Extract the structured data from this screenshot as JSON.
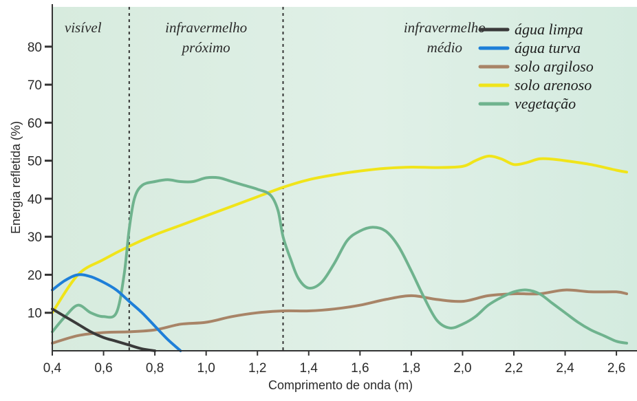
{
  "chart_data": {
    "type": "line",
    "xlabel": "Comprimento de onda (m)",
    "ylabel": "Energia refletida (%)",
    "xlim": [
      0.4,
      2.64
    ],
    "ylim": [
      0,
      88
    ],
    "x_ticks": [
      0.4,
      0.6,
      0.8,
      1.0,
      1.2,
      1.4,
      1.6,
      1.8,
      2.0,
      2.2,
      2.4,
      2.6
    ],
    "x_tick_labels": [
      "0,4",
      "0,6",
      "0,8",
      "1,0",
      "1,2",
      "1,4",
      "1,6",
      "1,8",
      "2,0",
      "2,2",
      "2,4",
      "2,6"
    ],
    "y_ticks": [
      10,
      20,
      30,
      40,
      50,
      60,
      70,
      80
    ],
    "y_tick_labels": [
      "10",
      "20",
      "30",
      "40",
      "50",
      "60",
      "70",
      "80"
    ],
    "grid": false,
    "legend_position": "top-right",
    "region_dividers": [
      0.7,
      1.3
    ],
    "regions": [
      {
        "lines": [
          "visível"
        ],
        "x": 0.52
      },
      {
        "lines": [
          "infravermelho",
          "próximo"
        ],
        "x": 1.0
      },
      {
        "lines": [
          "infravermelho",
          "médio"
        ],
        "x": 1.93
      }
    ],
    "series": [
      {
        "name": "água limpa",
        "color": "#3a3a3a",
        "x": [
          0.4,
          0.45,
          0.5,
          0.55,
          0.6,
          0.65,
          0.7,
          0.75,
          0.8
        ],
        "y": [
          11,
          9,
          7,
          5,
          3.5,
          2.5,
          1.5,
          0.5,
          0
        ]
      },
      {
        "name": "água turva",
        "color": "#1e7fd8",
        "x": [
          0.4,
          0.45,
          0.5,
          0.55,
          0.6,
          0.65,
          0.7,
          0.75,
          0.8,
          0.85,
          0.9
        ],
        "y": [
          16,
          18.5,
          20,
          19.5,
          18,
          16,
          13,
          10,
          6.5,
          3,
          0
        ]
      },
      {
        "name": "solo argiloso",
        "color": "#a88467",
        "x": [
          0.4,
          0.5,
          0.6,
          0.7,
          0.8,
          0.9,
          1.0,
          1.1,
          1.2,
          1.3,
          1.4,
          1.5,
          1.6,
          1.7,
          1.8,
          1.9,
          2.0,
          2.1,
          2.2,
          2.3,
          2.4,
          2.5,
          2.6,
          2.64
        ],
        "y": [
          2,
          4,
          4.8,
          5,
          5.5,
          7,
          7.5,
          9,
          10,
          10.5,
          10.5,
          11,
          12,
          13.5,
          14.5,
          13.5,
          13,
          14.5,
          15,
          15,
          16,
          15.5,
          15.5,
          15
        ]
      },
      {
        "name": "solo arenoso",
        "color": "#f0e41a",
        "x": [
          0.4,
          0.5,
          0.6,
          0.7,
          0.8,
          0.9,
          1.0,
          1.1,
          1.2,
          1.3,
          1.4,
          1.5,
          1.6,
          1.7,
          1.8,
          1.9,
          2.0,
          2.05,
          2.1,
          2.15,
          2.2,
          2.25,
          2.3,
          2.35,
          2.4,
          2.5,
          2.6,
          2.64
        ],
        "y": [
          10,
          20,
          24,
          27.5,
          30.5,
          33,
          35.5,
          38,
          40.5,
          43,
          45,
          46.3,
          47.3,
          48,
          48.3,
          48.2,
          48.5,
          50,
          51.2,
          50.5,
          49,
          49.5,
          50.5,
          50.4,
          50,
          49,
          47.5,
          47
        ]
      },
      {
        "name": "vegetação",
        "color": "#6fb38e",
        "x": [
          0.4,
          0.45,
          0.5,
          0.55,
          0.6,
          0.65,
          0.68,
          0.7,
          0.72,
          0.75,
          0.8,
          0.85,
          0.9,
          0.95,
          1.0,
          1.05,
          1.1,
          1.15,
          1.2,
          1.25,
          1.28,
          1.3,
          1.33,
          1.36,
          1.4,
          1.45,
          1.5,
          1.55,
          1.6,
          1.65,
          1.7,
          1.75,
          1.8,
          1.85,
          1.9,
          1.95,
          2.0,
          2.05,
          2.1,
          2.15,
          2.2,
          2.25,
          2.3,
          2.35,
          2.4,
          2.45,
          2.5,
          2.55,
          2.6,
          2.64
        ],
        "y": [
          5,
          9,
          12,
          10,
          9,
          10,
          20,
          32,
          40,
          43.5,
          44.5,
          45,
          44.5,
          44.5,
          45.5,
          45.5,
          44.5,
          43.5,
          42.5,
          41,
          37,
          30,
          24,
          19,
          16.5,
          18,
          23,
          29,
          31.5,
          32.5,
          31.5,
          27.5,
          21,
          14,
          8,
          6,
          7,
          9,
          12,
          14,
          15.5,
          16,
          15,
          12.5,
          10,
          7.5,
          5.5,
          4,
          2.5,
          2
        ]
      }
    ]
  }
}
